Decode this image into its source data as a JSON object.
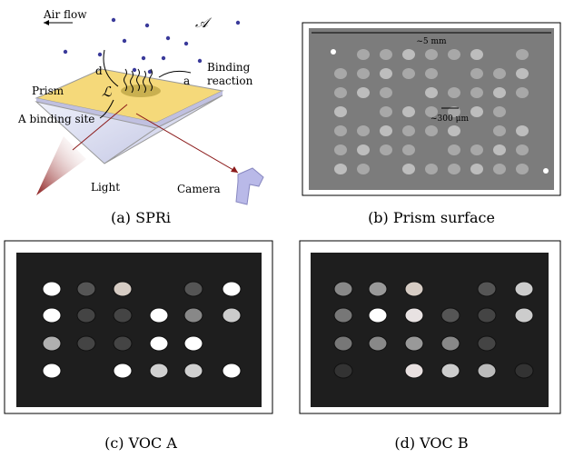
{
  "panel_a": {
    "air_flow": "Air flow",
    "analyte": "𝒜",
    "d": "d",
    "a": "a",
    "binding_reaction": [
      "Binding",
      "reaction"
    ],
    "prism": "Prism",
    "ligand": "ℒ",
    "binding_site": "A binding site",
    "light": "Light",
    "camera": "Camera",
    "caption": "(a) SPRi"
  },
  "panel_b": {
    "width_label": "~5 mm",
    "spot_label": "~300 μm",
    "caption": "(b) Prism surface"
  },
  "panel_c": {
    "caption": "(c) VOC A"
  },
  "panel_d": {
    "caption": "(d) VOC B"
  }
}
